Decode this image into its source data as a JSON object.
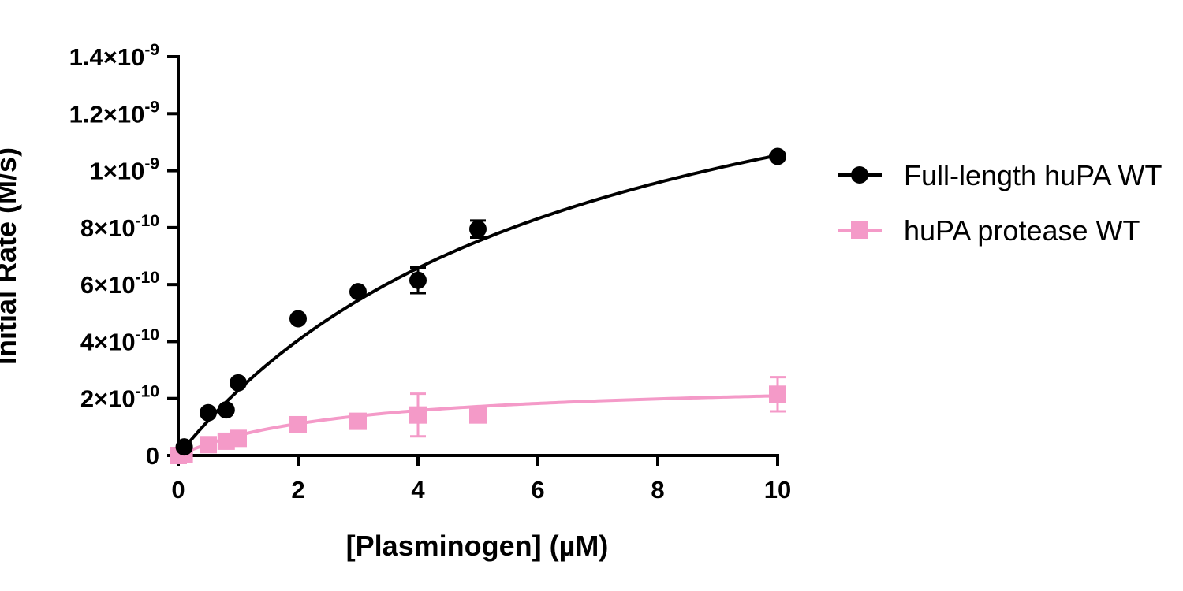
{
  "chart_data": {
    "type": "scatter",
    "xlabel": "[Plasminogen] (µM)",
    "ylabel": "Initial Rate (M/s)",
    "xlim": [
      0,
      10
    ],
    "ylim": [
      0,
      1.4e-09
    ],
    "x_ticks": [
      0,
      2,
      4,
      6,
      8,
      10
    ],
    "y_ticks": [
      {
        "value": 0,
        "mantissa": "0",
        "exponent": ""
      },
      {
        "value": 2e-10,
        "mantissa": "2×10",
        "exponent": "-10"
      },
      {
        "value": 4e-10,
        "mantissa": "4×10",
        "exponent": "-10"
      },
      {
        "value": 6e-10,
        "mantissa": "6×10",
        "exponent": "-10"
      },
      {
        "value": 8e-10,
        "mantissa": "8×10",
        "exponent": "-10"
      },
      {
        "value": 1e-09,
        "mantissa": "1×10",
        "exponent": "-9"
      },
      {
        "value": 1.2e-09,
        "mantissa": "1.2×10",
        "exponent": "-9"
      },
      {
        "value": 1.4e-09,
        "mantissa": "1.4×10",
        "exponent": "-9"
      }
    ],
    "grid": false,
    "legend_position": "right",
    "series": [
      {
        "name": "Full-length huPA WT",
        "color": "#000000",
        "marker": "circle",
        "x": [
          0.1,
          0.5,
          0.8,
          1,
          2,
          3,
          4,
          5,
          10
        ],
        "y": [
          3e-11,
          1.5e-10,
          1.6e-10,
          2.55e-10,
          4.8e-10,
          5.75e-10,
          6.15e-10,
          7.95e-10,
          1.05e-09
        ],
        "err": [
          0,
          0,
          0,
          0,
          0,
          0,
          4.5e-11,
          3e-11,
          0
        ],
        "fit": {
          "model": "michaelis-menten",
          "vmax": 1.76e-09,
          "km": 6.7
        }
      },
      {
        "name": "huPA protease WT",
        "color": "#f49ac8",
        "marker": "square",
        "x": [
          0,
          0.1,
          0.5,
          0.8,
          1,
          2,
          3,
          4,
          5,
          10
        ],
        "y": [
          0.0,
          5e-12,
          3.8e-11,
          5e-11,
          6e-11,
          1.08e-10,
          1.2e-10,
          1.42e-10,
          1.42e-10,
          2.15e-10
        ],
        "err": [
          0,
          0,
          0,
          0,
          0,
          0,
          0,
          7.5e-11,
          0,
          6e-11
        ],
        "fit": {
          "model": "michaelis-menten",
          "vmax": 2.68e-10,
          "km": 2.8
        }
      }
    ]
  }
}
